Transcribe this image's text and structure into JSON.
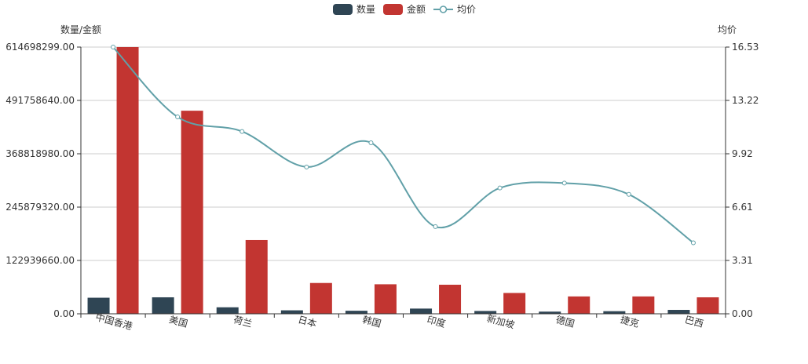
{
  "colors": {
    "quantity": "#2f4554",
    "amount": "#c23531",
    "avg_price": "#61a0a8",
    "grid": "#cccccc",
    "axis": "#333333",
    "text": "#333333"
  },
  "chart_data": {
    "type": "bar",
    "categories": [
      "中国香港",
      "美国",
      "荷兰",
      "日本",
      "韩国",
      "印度",
      "新加坡",
      "德国",
      "捷克",
      "巴西"
    ],
    "series": [
      {
        "name": "数量",
        "type": "bar",
        "axis": "left",
        "values": [
          37000000,
          38000000,
          15000000,
          8000000,
          7000000,
          12000000,
          6500000,
          5000000,
          6000000,
          9000000
        ]
      },
      {
        "name": "金额",
        "type": "bar",
        "axis": "left",
        "values": [
          614698299,
          468000000,
          170000000,
          71000000,
          68000000,
          67000000,
          48000000,
          40000000,
          40000000,
          38000000
        ]
      },
      {
        "name": "均价",
        "type": "line",
        "smooth": true,
        "axis": "right",
        "values": [
          16.53,
          12.2,
          11.3,
          9.1,
          10.6,
          5.4,
          7.8,
          8.1,
          7.4,
          4.4
        ]
      }
    ],
    "left_axis": {
      "label": "数量/金额",
      "min": 0,
      "max": 614698299,
      "ticks": [
        "0.00",
        "122939660.00",
        "245879320.00",
        "368818980.00",
        "491758640.00",
        "614698299.00"
      ]
    },
    "right_axis": {
      "label": "均价",
      "min": 0,
      "max": 16.53,
      "ticks": [
        "0.00",
        "3.31",
        "6.61",
        "9.92",
        "13.22",
        "16.53"
      ]
    },
    "legend": {
      "placement": "top-center",
      "items": [
        "数量",
        "金额",
        "均价"
      ]
    },
    "grid": true
  }
}
